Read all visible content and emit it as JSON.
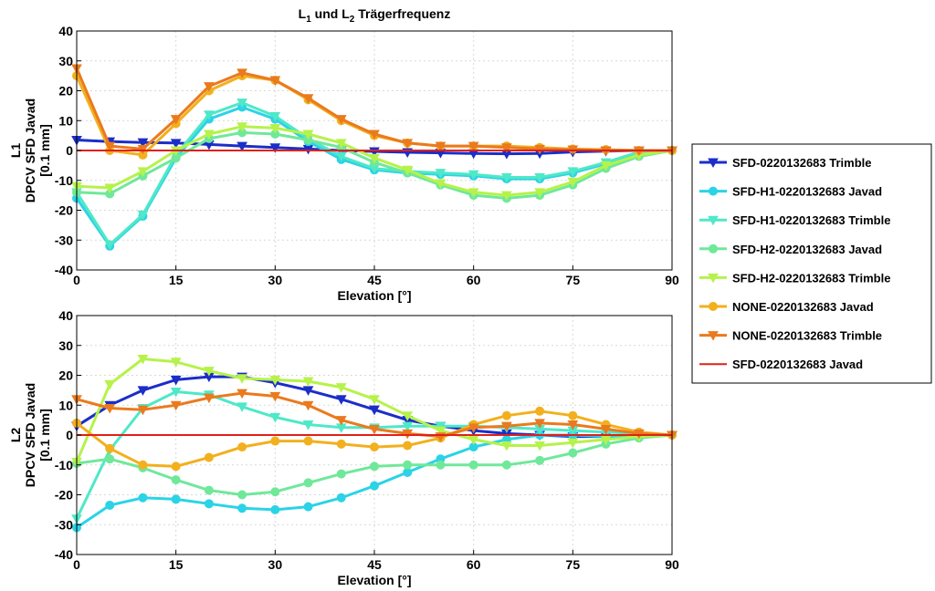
{
  "title": {
    "main": "L",
    "sub1": "1",
    "mid": " und L",
    "sub2": "2",
    "tail": "  Trägerfrequenz"
  },
  "legend": {
    "placement": "right",
    "entries": [
      {
        "label": "SFD-0220132683 Trimble",
        "color": "#1b2ec8",
        "marker": "triangle-down"
      },
      {
        "label": "SFD-H1-0220132683 Javad",
        "color": "#2bd3e6",
        "marker": "circle"
      },
      {
        "label": "SFD-H1-0220132683 Trimble",
        "color": "#4fe8c8",
        "marker": "triangle-down"
      },
      {
        "label": "SFD-H2-0220132683 Javad",
        "color": "#6fe89a",
        "marker": "circle"
      },
      {
        "label": "SFD-H2-0220132683 Trimble",
        "color": "#b6f24a",
        "marker": "triangle-down"
      },
      {
        "label": "NONE-0220132683 Javad",
        "color": "#f2b01e",
        "marker": "circle"
      },
      {
        "label": "NONE-0220132683 Trimble",
        "color": "#ea7a1e",
        "marker": "triangle-down"
      },
      {
        "label": "SFD-0220132683 Javad",
        "color": "#e0201a",
        "marker": "none"
      }
    ]
  },
  "chart_data": [
    {
      "type": "line",
      "panel": "L1",
      "ylabel_lines": [
        "L1",
        "DPCV SFD Javad",
        "[0.1 mm]"
      ],
      "xlabel": "Elevation [°]",
      "xlim": [
        0,
        90
      ],
      "ylim": [
        -40,
        40
      ],
      "xticks": [
        0,
        15,
        30,
        45,
        60,
        75,
        90
      ],
      "yticks": [
        -40,
        -30,
        -20,
        -10,
        0,
        10,
        20,
        30,
        40
      ],
      "grid": true,
      "x": [
        0,
        5,
        10,
        15,
        20,
        25,
        30,
        35,
        40,
        45,
        50,
        55,
        60,
        65,
        70,
        75,
        80,
        85,
        90
      ],
      "series": [
        {
          "name": "SFD-0220132683 Trimble",
          "values": [
            3.5,
            3,
            2.7,
            2.5,
            2,
            1.5,
            1,
            0.5,
            0,
            -0.3,
            -0.6,
            -0.8,
            -1,
            -1.1,
            -1,
            -0.5,
            -0.2,
            0,
            0
          ]
        },
        {
          "name": "SFD-H1-0220132683 Javad",
          "values": [
            -16,
            -32,
            -22,
            -2.5,
            10.5,
            14.5,
            10.5,
            3,
            -3,
            -6.5,
            -7.5,
            -8,
            -8.5,
            -9.5,
            -9.5,
            -7.5,
            -4.5,
            -1,
            0
          ]
        },
        {
          "name": "SFD-H1-0220132683 Trimble",
          "values": [
            -14,
            -31.5,
            -21.5,
            -1.5,
            12,
            16,
            11.5,
            4,
            -2,
            -6,
            -7,
            -7.5,
            -8,
            -9,
            -9,
            -7,
            -4,
            -0.5,
            0
          ]
        },
        {
          "name": "SFD-H2-0220132683 Javad",
          "values": [
            -14,
            -14.5,
            -8.5,
            -2.5,
            4,
            6,
            5.5,
            3.5,
            1,
            -4,
            -7.5,
            -11.5,
            -15,
            -16,
            -15,
            -11.5,
            -6,
            -2,
            0
          ]
        },
        {
          "name": "SFD-H2-0220132683 Trimble",
          "values": [
            -12,
            -12.5,
            -7,
            0,
            5.5,
            8,
            7.5,
            5.5,
            2.5,
            -2.5,
            -6.5,
            -11,
            -14,
            -15,
            -14,
            -10.5,
            -5,
            -1.5,
            0
          ]
        },
        {
          "name": "NONE-0220132683 Javad",
          "values": [
            25,
            0,
            -1.5,
            9,
            20,
            25,
            23.5,
            17,
            10,
            5,
            2.5,
            1.5,
            1.5,
            1.5,
            1,
            0.5,
            0.3,
            0,
            0
          ]
        },
        {
          "name": "NONE-0220132683 Trimble",
          "values": [
            27.5,
            1.5,
            0.5,
            10.5,
            21.5,
            26,
            23.5,
            17.5,
            10.5,
            5.5,
            2.5,
            1.5,
            1.5,
            1,
            0.5,
            0.3,
            0,
            0,
            0
          ]
        },
        {
          "name": "SFD-0220132683 Javad",
          "values": [
            0,
            0,
            0,
            0,
            0,
            0,
            0,
            0,
            0,
            0,
            0,
            0,
            0,
            0,
            0,
            0,
            0,
            0,
            0
          ]
        }
      ]
    },
    {
      "type": "line",
      "panel": "L2",
      "ylabel_lines": [
        "L2",
        "DPCV SFD Javad",
        "[0.1 mm]"
      ],
      "xlabel": "Elevation [°]",
      "xlim": [
        0,
        90
      ],
      "ylim": [
        -40,
        40
      ],
      "xticks": [
        0,
        15,
        30,
        45,
        60,
        75,
        90
      ],
      "yticks": [
        -40,
        -30,
        -20,
        -10,
        0,
        10,
        20,
        30,
        40
      ],
      "grid": true,
      "x": [
        0,
        5,
        10,
        15,
        20,
        25,
        30,
        35,
        40,
        45,
        50,
        55,
        60,
        65,
        70,
        75,
        80,
        85,
        90
      ],
      "series": [
        {
          "name": "SFD-0220132683 Trimble",
          "values": [
            3,
            10,
            15,
            18.5,
            19.5,
            19.5,
            17.5,
            15,
            12,
            8.5,
            5,
            3,
            1.5,
            0.5,
            0,
            -0.5,
            -0.5,
            -0.3,
            0
          ]
        },
        {
          "name": "SFD-H1-0220132683 Javad",
          "values": [
            -31,
            -23.5,
            -21,
            -21.5,
            -23,
            -24.5,
            -25,
            -24,
            -21,
            -17,
            -12.5,
            -8,
            -4,
            -1.5,
            0,
            0,
            -0.5,
            -0.3,
            0
          ]
        },
        {
          "name": "SFD-H1-0220132683 Trimble",
          "values": [
            -28,
            -5,
            9,
            14.5,
            13.5,
            9.5,
            6,
            3.5,
            2.5,
            2.5,
            3,
            3,
            3,
            2.5,
            2,
            1.5,
            1,
            0.5,
            0
          ]
        },
        {
          "name": "SFD-H2-0220132683 Javad",
          "values": [
            -9.5,
            -8,
            -11,
            -15,
            -18.5,
            -20,
            -19,
            -16,
            -13,
            -10.5,
            -10,
            -10,
            -10,
            -10,
            -8.5,
            -6,
            -3,
            -1,
            0
          ]
        },
        {
          "name": "SFD-H2-0220132683 Trimble",
          "values": [
            -9,
            17,
            25.5,
            24.5,
            21.5,
            19,
            18.5,
            18,
            16,
            12,
            6.5,
            1.5,
            -1.5,
            -3.5,
            -3.5,
            -2.5,
            -1.5,
            -0.5,
            0
          ]
        },
        {
          "name": "NONE-0220132683 Javad",
          "values": [
            4,
            -4.5,
            -10,
            -10.5,
            -7.5,
            -4,
            -2,
            -2,
            -3,
            -4,
            -3.5,
            -1,
            3.5,
            6.5,
            8,
            6.5,
            3.5,
            1,
            0
          ]
        },
        {
          "name": "NONE-0220132683 Trimble",
          "values": [
            12,
            9,
            8.5,
            10,
            12.5,
            14,
            13,
            10,
            5,
            2,
            0.5,
            -0.5,
            2.5,
            3,
            4,
            3.5,
            2,
            0.5,
            0
          ]
        },
        {
          "name": "SFD-0220132683 Javad",
          "values": [
            0,
            0,
            0,
            0,
            0,
            0,
            0,
            0,
            0,
            0,
            0,
            0,
            0,
            0,
            0,
            0,
            0,
            0,
            0
          ]
        }
      ]
    }
  ]
}
